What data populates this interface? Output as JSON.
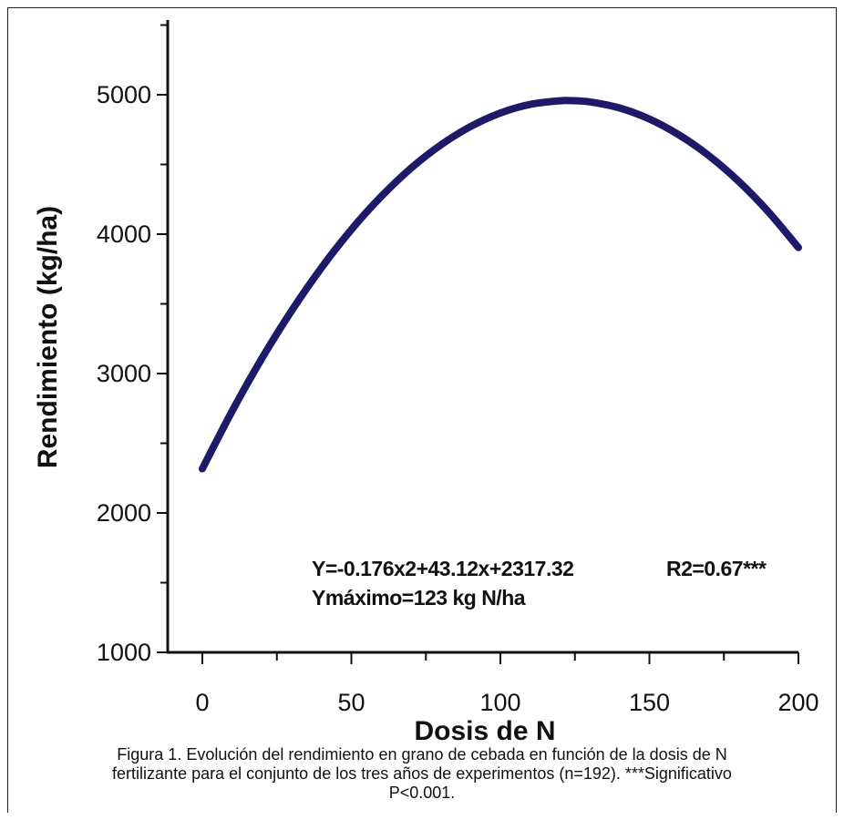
{
  "chart_data": {
    "type": "line",
    "title": "",
    "xlabel": "Dosis de N",
    "ylabel": "Rendimiento (kg/ha)",
    "xlim": [
      0,
      200
    ],
    "ylim": [
      1000,
      5500
    ],
    "x_ticks": [
      0,
      50,
      100,
      150,
      200
    ],
    "y_ticks": [
      1000,
      2000,
      3000,
      4000,
      5000
    ],
    "grid": false,
    "legend": "none",
    "series": [
      {
        "color": "#1c1a6b",
        "x": [
          0,
          10,
          20,
          30,
          40,
          50,
          60,
          70,
          80,
          90,
          100,
          110,
          120,
          123,
          130,
          140,
          150,
          160,
          170,
          180,
          190,
          200
        ],
        "y": [
          2317,
          2731,
          3110,
          3452,
          3760,
          4033,
          4270,
          4473,
          4640,
          4772,
          4869,
          4931,
          4957,
          4958,
          4949,
          4905,
          4826,
          4711,
          4562,
          4378,
          4158,
          3904
        ]
      }
    ],
    "annotations": [
      "Y=-0.176x2+43.12x+2317.32",
      "R2=0.67***",
      "Ymáximo=123 kg N/ha"
    ]
  },
  "caption": {
    "line1": "Figura 1. Evolución del rendimiento en grano de cebada en función de la dosis de N",
    "line2": "fertilizante para el conjunto de los tres años de experimentos (n=192). ***Significativo",
    "line3": "P<0.001."
  }
}
